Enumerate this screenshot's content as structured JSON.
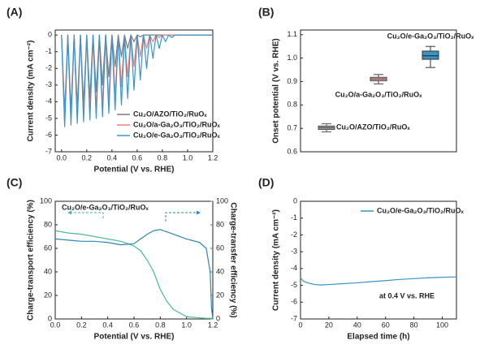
{
  "chart_data": [
    {
      "type": "line",
      "panel": "(A)",
      "xlabel": "Potential (V vs. RHE)",
      "ylabel": "Current density (mA cm⁻²)",
      "xlim": [
        -0.05,
        1.2
      ],
      "ylim": [
        -7,
        0.3
      ],
      "xticks": [
        {
          "value": 0,
          "label": "0.0"
        },
        0.2,
        0.4,
        0.6,
        0.8,
        {
          "value": 1,
          "label": "1.0"
        },
        1.2
      ],
      "yticks": [
        -7,
        -6,
        -5,
        -4,
        -3,
        -2,
        -1,
        0
      ],
      "legend": "lower right",
      "x": [
        0,
        0.025,
        0.05,
        0.075,
        0.1,
        0.125,
        0.15,
        0.175,
        0.2,
        0.225,
        0.25,
        0.275,
        0.3,
        0.325,
        0.35,
        0.375,
        0.4,
        0.425,
        0.45,
        0.475,
        0.5,
        0.525,
        0.55,
        0.575,
        0.6,
        0.625,
        0.65,
        0.675,
        0.7,
        0.725,
        0.75,
        0.775,
        0.8,
        0.825,
        0.85,
        0.875,
        0.9,
        0.925,
        0.95,
        0.975,
        1.0,
        1.025,
        1.05,
        1.075,
        1.1,
        1.125,
        1.15,
        1.175,
        1.2
      ],
      "series": [
        {
          "name": "Cu₂O/AZO/TiO₂/RuOₓ",
          "color": "#7a7a7a",
          "values": [
            0,
            -4.6,
            0,
            -4.5,
            0,
            -4.3,
            0,
            -4.1,
            0,
            -3.8,
            0,
            -3.4,
            0,
            -3.0,
            0,
            -2.5,
            0,
            -1.9,
            0,
            -1.3,
            0,
            -0.8,
            0,
            -0.4,
            0,
            -0.1,
            0,
            0,
            0,
            0,
            0,
            0,
            0,
            0,
            0,
            0,
            0,
            0,
            0,
            0,
            0,
            0,
            0,
            0,
            0,
            0,
            0,
            0,
            0
          ]
        },
        {
          "name": "Cu₂O/a-Ga₂O₃/TiO₂/RuOₓ",
          "color": "#e8827c",
          "values": [
            0,
            -5.2,
            0,
            -5.1,
            0,
            -5.0,
            0,
            -4.9,
            0,
            -4.7,
            0,
            -4.5,
            0,
            -4.3,
            0,
            -4.0,
            0,
            -3.6,
            0,
            -3.1,
            0,
            -2.5,
            0,
            -1.9,
            0,
            -1.3,
            0,
            -0.8,
            0,
            -0.4,
            0,
            -0.15,
            0,
            0,
            0,
            0,
            0,
            0,
            0,
            0,
            0,
            0,
            0,
            0,
            0,
            0,
            0,
            0,
            0
          ]
        },
        {
          "name": "Cu₂O/e-Ga₂O₃/TiO₂/RuOₓ",
          "color": "#3a93c9",
          "values": [
            0,
            -5.5,
            0,
            -5.4,
            0,
            -5.3,
            0,
            -5.2,
            0,
            -5.1,
            0,
            -5.0,
            0,
            -4.9,
            0,
            -4.7,
            0,
            -4.5,
            0,
            -4.2,
            0,
            -3.8,
            0,
            -3.3,
            0,
            -2.7,
            0,
            -2.0,
            0,
            -1.4,
            0,
            -0.8,
            0,
            -0.4,
            0,
            -0.15,
            0,
            0,
            0,
            0,
            0,
            0,
            0,
            0,
            0,
            0,
            0,
            0,
            0
          ]
        }
      ]
    },
    {
      "type": "box",
      "panel": "(B)",
      "ylabel": "Onset potential (V vs. RHE)",
      "ylim": [
        0.6,
        1.12
      ],
      "yticks": [
        0.6,
        0.7,
        0.8,
        0.9,
        {
          "value": 1,
          "label": "1.0"
        },
        1.1
      ],
      "categories": [
        "Cu₂O/AZO/TiO₂/RuOₓ",
        "Cu₂O/a-Ga₂O₃/TiO₂/RuOₓ",
        "Cu₂O/e-Ga₂O₃/TiO₂/RuOₓ"
      ],
      "boxes": [
        {
          "min": 0.685,
          "q1": 0.695,
          "median": 0.703,
          "q3": 0.71,
          "max": 0.72,
          "color": "#555555",
          "fill": "#9a9a9a",
          "label_color": "#555555"
        },
        {
          "min": 0.89,
          "q1": 0.903,
          "median": 0.911,
          "q3": 0.918,
          "max": 0.93,
          "color": "#444444",
          "fill": "#f2a9a4",
          "label_color": "#e8827c"
        },
        {
          "min": 0.96,
          "q1": 0.995,
          "median": 1.01,
          "q3": 1.03,
          "max": 1.05,
          "color": "#333333",
          "fill": "#3a93c9",
          "label_color": "#3a93c9"
        }
      ]
    },
    {
      "type": "line",
      "panel": "(C)",
      "xlabel": "Potential (V vs. RHE)",
      "ylabel": "Charge-transport efficiency (%)",
      "y2label": "Charge-transfer efficiency (%)",
      "annotation": "Cu₂O/e-Ga₂O₃/TiO₂/RuOₓ",
      "xlim": [
        0,
        1.2
      ],
      "ylim": [
        0,
        100
      ],
      "y2lim": [
        0,
        100
      ],
      "xticks": [
        {
          "value": 0,
          "label": "0.0"
        },
        0.2,
        0.4,
        0.6,
        0.8,
        {
          "value": 1,
          "label": "1.0"
        },
        1.2
      ],
      "yticks": [
        0,
        20,
        40,
        60,
        80,
        100
      ],
      "y2ticks": [
        0,
        20,
        40,
        60,
        80,
        100
      ],
      "x": [
        0,
        0.1,
        0.2,
        0.3,
        0.4,
        0.5,
        0.6,
        0.65,
        0.7,
        0.75,
        0.8,
        0.85,
        0.9,
        1.0,
        1.1,
        1.15,
        1.18,
        1.19,
        1.2
      ],
      "series": [
        {
          "color": "#4cbb8f",
          "values": [
            75,
            73,
            72,
            70,
            68,
            66,
            62,
            58,
            50,
            40,
            25,
            15,
            8,
            2,
            1,
            0.5,
            0.5,
            0.5,
            0.5
          ]
        },
        {
          "color": "#2e86b8",
          "axis": "y2",
          "values": [
            68,
            67,
            66,
            66,
            65,
            63,
            64,
            68,
            72,
            75,
            76,
            74,
            72,
            68,
            65,
            60,
            40,
            10,
            0
          ]
        }
      ]
    },
    {
      "type": "line",
      "panel": "(D)",
      "xlabel": "Elapsed time (h)",
      "ylabel": "Current density (mA cm⁻²)",
      "annotation": "at 0.4 V vs. RHE",
      "legend": "upper right",
      "xlim": [
        0,
        110
      ],
      "ylim": [
        -7,
        0
      ],
      "xticks": [
        0,
        20,
        40,
        60,
        80,
        100
      ],
      "yticks": [
        -7,
        -6,
        -5,
        -4,
        -3,
        -2,
        -1,
        0
      ],
      "x": [
        0,
        2,
        5,
        10,
        15,
        20,
        30,
        40,
        50,
        60,
        70,
        80,
        90,
        100,
        110
      ],
      "series": [
        {
          "name": "Cu₂O/e-Ga₂O₃/TiO₂/RuOₓ",
          "color": "#3a93c9",
          "values": [
            -4.55,
            -4.75,
            -4.85,
            -4.95,
            -4.98,
            -4.95,
            -4.9,
            -4.85,
            -4.78,
            -4.72,
            -4.65,
            -4.6,
            -4.55,
            -4.52,
            -4.5
          ]
        }
      ]
    }
  ]
}
